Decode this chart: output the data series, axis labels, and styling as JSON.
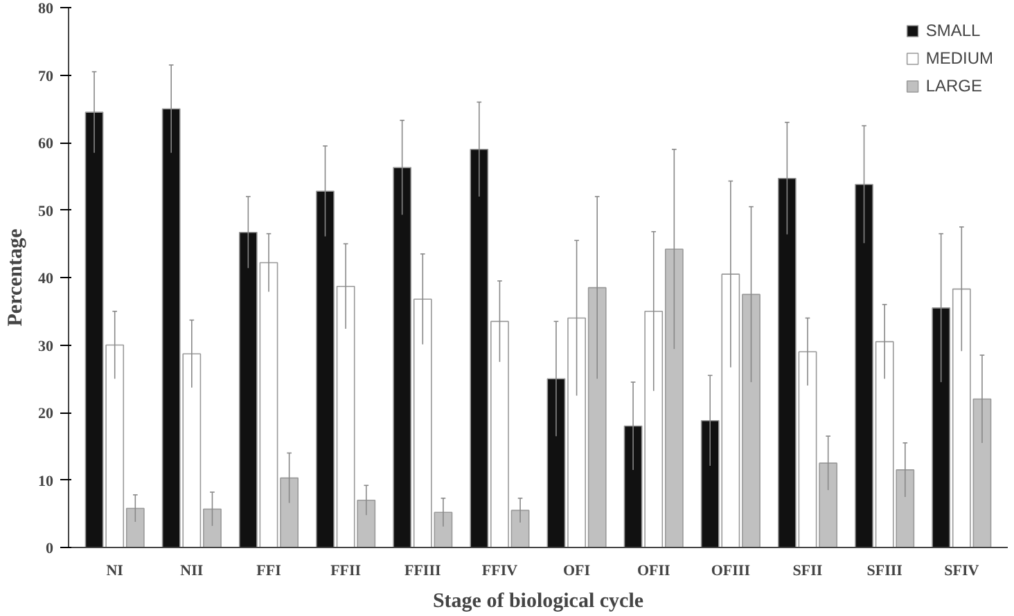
{
  "chart_data": {
    "type": "bar",
    "xlabel": "Stage of biological cycle",
    "ylabel": "Percentage",
    "categories": [
      "NI",
      "NII",
      "FFI",
      "FFII",
      "FFIII",
      "FFIV",
      "OFI",
      "OFII",
      "OFIII",
      "SFII",
      "SFIII",
      "SFIV"
    ],
    "series": [
      {
        "name": "SMALL",
        "color": "#111111",
        "values": [
          64.5,
          65,
          46.7,
          52.8,
          56.3,
          59,
          25,
          18,
          18.8,
          54.7,
          53.8,
          35.5
        ],
        "errors": [
          6,
          6.5,
          5.3,
          6.7,
          7,
          7,
          8.5,
          6.5,
          6.7,
          8.3,
          8.7,
          11
        ]
      },
      {
        "name": "MEDIUM",
        "color": "#ffffff",
        "values": [
          30,
          28.7,
          42.2,
          38.7,
          36.8,
          33.5,
          34,
          35,
          40.5,
          29,
          30.5,
          38.3
        ],
        "errors": [
          5,
          5,
          4.3,
          6.3,
          6.7,
          6,
          11.5,
          11.8,
          13.8,
          5,
          5.5,
          9.2
        ]
      },
      {
        "name": "LARGE",
        "color": "#c0c0c0",
        "values": [
          5.8,
          5.7,
          10.3,
          7,
          5.2,
          5.5,
          38.5,
          44.2,
          37.5,
          12.5,
          11.5,
          22
        ],
        "errors": [
          2,
          2.5,
          3.7,
          2.2,
          2.1,
          1.8,
          13.5,
          14.8,
          13,
          4,
          4,
          6.5
        ]
      }
    ],
    "ylim": [
      0,
      80
    ],
    "yticks": [
      0,
      10,
      20,
      30,
      40,
      50,
      60,
      70,
      80
    ],
    "grid": false,
    "legend": "top right"
  }
}
